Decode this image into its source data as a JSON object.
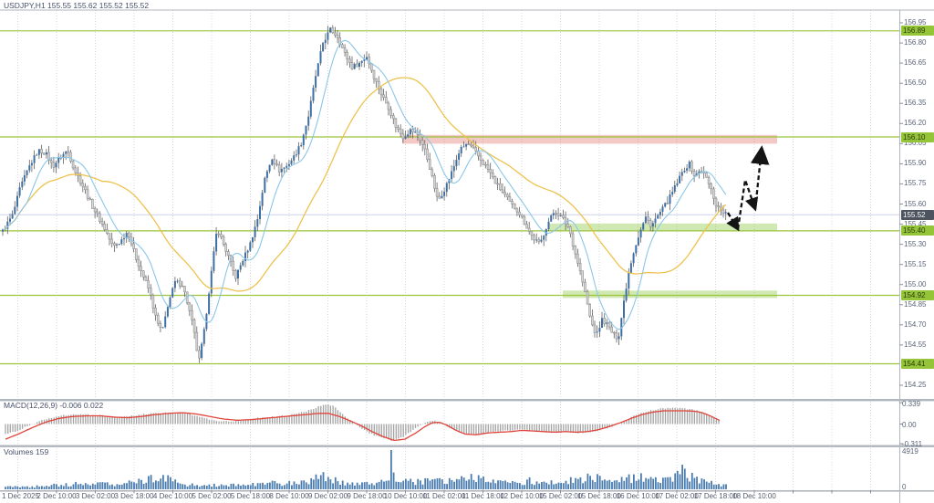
{
  "title_text": "USDJPY,H1 155.55 155.62 155.52 155.52",
  "colors": {
    "bull": "#3d6fa5",
    "bear_fill": "#d6d6d6",
    "bear_border": "#8f8f8f",
    "wick": "#606060",
    "ma_fast": "#8ac6e8",
    "ma_slow": "#edc24e",
    "level_line": "#9cc43c",
    "badge_bg": "#94c437",
    "badge_text": "#2c3a10",
    "zone_red": "rgba(221,112,99,0.38)",
    "zone_green": "rgba(137,199,66,0.40)",
    "current_line": "#ccd2ec",
    "current_badge_bg": "#4d545f",
    "macd_hist": "#a3a3a3",
    "macd_signal": "#e0443a",
    "volume": "#4a7cb0",
    "grid": "#d4d8dd",
    "frame": "#b0b6be",
    "arrow": "#141414"
  },
  "price_axis": {
    "ticks": [
      "156.95",
      "156.80",
      "156.65",
      "156.50",
      "156.35",
      "156.20",
      "156.05",
      "155.90",
      "155.75",
      "155.60",
      "155.45",
      "155.30",
      "155.15",
      "155.00",
      "154.85",
      "154.70",
      "154.55",
      "154.25"
    ]
  },
  "macd_axis": {
    "ticks": [
      "0.339",
      "0.00",
      "-0.311"
    ],
    "values": [
      0.339,
      0.0,
      -0.311
    ]
  },
  "volume_axis": {
    "ticks": [
      "4919",
      "0"
    ],
    "values": [
      4919,
      0
    ]
  },
  "time_axis": {
    "labels": [
      "1 Dec 2025",
      "2 Dec 10:00",
      "3 Dec 02:00",
      "3 Dec 18:00",
      "4 Dec 10:00",
      "5 Dec 02:00",
      "5 Dec 18:00",
      "8 Dec 10:00",
      "9 Dec 02:00",
      "9 Dec 18:00",
      "10 Dec 10:00",
      "11 Dec 02:00",
      "11 Dec 18:00",
      "12 Dec 10:00",
      "15 Dec 02:00",
      "15 Dec 18:00",
      "16 Dec 10:00",
      "17 Dec 02:00",
      "17 Dec 18:00",
      "18 Dec 10:00"
    ]
  },
  "chart_data": {
    "type": "candlestick",
    "symbol": "USDJPY",
    "timeframe": "H1",
    "current_bar": {
      "open": "155.55",
      "high": "155.62",
      "low": "155.52",
      "close": "155.52"
    },
    "ylim": [
      154.18,
      157.04
    ],
    "current_price": 155.52,
    "levels": [
      {
        "price": 156.89,
        "label": "156.89"
      },
      {
        "price": 156.1,
        "label": "156.10"
      },
      {
        "price": 155.4,
        "label": "155.40"
      },
      {
        "price": 154.92,
        "label": "154.92"
      },
      {
        "price": 154.41,
        "label": "154.41"
      }
    ],
    "zones": [
      {
        "type": "resistance",
        "price_from": 156.05,
        "price_to": 156.115,
        "x_from": 441,
        "x_to": 852,
        "color": "red"
      },
      {
        "type": "support",
        "price_from": 155.4,
        "price_to": 155.455,
        "x_from": 601,
        "x_to": 852,
        "color": "green"
      },
      {
        "type": "support",
        "price_from": 154.9,
        "price_to": 154.955,
        "x_from": 617,
        "x_to": 852,
        "color": "green"
      }
    ],
    "close_anchors": [
      [
        3,
        155.4
      ],
      [
        14,
        155.52
      ],
      [
        22,
        155.72
      ],
      [
        32,
        155.88
      ],
      [
        42,
        156.0
      ],
      [
        50,
        155.98
      ],
      [
        58,
        155.88
      ],
      [
        66,
        155.95
      ],
      [
        74,
        156.0
      ],
      [
        82,
        155.85
      ],
      [
        92,
        155.72
      ],
      [
        100,
        155.6
      ],
      [
        108,
        155.5
      ],
      [
        116,
        155.4
      ],
      [
        124,
        155.28
      ],
      [
        132,
        155.32
      ],
      [
        140,
        155.4
      ],
      [
        148,
        155.22
      ],
      [
        156,
        155.08
      ],
      [
        164,
        154.95
      ],
      [
        172,
        154.72
      ],
      [
        178,
        154.65
      ],
      [
        184,
        154.85
      ],
      [
        192,
        155.02
      ],
      [
        200,
        155.0
      ],
      [
        206,
        154.85
      ],
      [
        212,
        154.68
      ],
      [
        218,
        154.42
      ],
      [
        224,
        154.66
      ],
      [
        230,
        155.0
      ],
      [
        238,
        155.42
      ],
      [
        244,
        155.32
      ],
      [
        252,
        155.18
      ],
      [
        258,
        155.05
      ],
      [
        266,
        155.18
      ],
      [
        274,
        155.3
      ],
      [
        282,
        155.48
      ],
      [
        290,
        155.78
      ],
      [
        298,
        155.95
      ],
      [
        306,
        155.85
      ],
      [
        314,
        155.88
      ],
      [
        322,
        155.95
      ],
      [
        330,
        156.05
      ],
      [
        338,
        156.25
      ],
      [
        346,
        156.55
      ],
      [
        354,
        156.8
      ],
      [
        362,
        156.9
      ],
      [
        370,
        156.85
      ],
      [
        378,
        156.72
      ],
      [
        386,
        156.62
      ],
      [
        394,
        156.65
      ],
      [
        402,
        156.7
      ],
      [
        410,
        156.55
      ],
      [
        418,
        156.42
      ],
      [
        426,
        156.32
      ],
      [
        434,
        156.18
      ],
      [
        442,
        156.1
      ],
      [
        450,
        156.15
      ],
      [
        458,
        156.12
      ],
      [
        466,
        156.0
      ],
      [
        472,
        155.85
      ],
      [
        480,
        155.62
      ],
      [
        488,
        155.72
      ],
      [
        496,
        155.85
      ],
      [
        504,
        156.0
      ],
      [
        512,
        156.05
      ],
      [
        520,
        156.0
      ],
      [
        528,
        155.92
      ],
      [
        536,
        155.85
      ],
      [
        544,
        155.75
      ],
      [
        552,
        155.68
      ],
      [
        560,
        155.6
      ],
      [
        568,
        155.55
      ],
      [
        576,
        155.45
      ],
      [
        584,
        155.35
      ],
      [
        592,
        155.3
      ],
      [
        600,
        155.45
      ],
      [
        608,
        155.55
      ],
      [
        616,
        155.5
      ],
      [
        624,
        155.42
      ],
      [
        630,
        155.25
      ],
      [
        636,
        155.1
      ],
      [
        642,
        154.92
      ],
      [
        648,
        154.72
      ],
      [
        654,
        154.62
      ],
      [
        660,
        154.74
      ],
      [
        666,
        154.7
      ],
      [
        672,
        154.63
      ],
      [
        678,
        154.6
      ],
      [
        684,
        154.88
      ],
      [
        690,
        155.12
      ],
      [
        696,
        155.28
      ],
      [
        702,
        155.4
      ],
      [
        708,
        155.5
      ],
      [
        714,
        155.44
      ],
      [
        720,
        155.5
      ],
      [
        726,
        155.56
      ],
      [
        732,
        155.62
      ],
      [
        738,
        155.7
      ],
      [
        744,
        155.78
      ],
      [
        750,
        155.86
      ],
      [
        756,
        155.9
      ],
      [
        762,
        155.8
      ],
      [
        768,
        155.86
      ],
      [
        774,
        155.8
      ],
      [
        780,
        155.7
      ],
      [
        786,
        155.58
      ],
      [
        792,
        155.55
      ],
      [
        797,
        155.52
      ]
    ],
    "moving_averages": [
      {
        "name": "fast",
        "window": 11,
        "color_key": "ma_fast"
      },
      {
        "name": "slow",
        "window": 42,
        "color_key": "ma_slow"
      }
    ],
    "macd": {
      "label": "MACD(12,26,9)",
      "values": "-0.006 0.022",
      "range": [
        -0.311,
        0.339
      ],
      "signal_anchors": [
        [
          6,
          -0.24
        ],
        [
          20,
          -0.16
        ],
        [
          35,
          -0.06
        ],
        [
          50,
          0.03
        ],
        [
          65,
          0.09
        ],
        [
          80,
          0.12
        ],
        [
          95,
          0.13
        ],
        [
          110,
          0.13
        ],
        [
          125,
          0.11
        ],
        [
          140,
          0.1
        ],
        [
          155,
          0.12
        ],
        [
          170,
          0.15
        ],
        [
          185,
          0.17
        ],
        [
          200,
          0.18
        ],
        [
          215,
          0.16
        ],
        [
          230,
          0.12
        ],
        [
          245,
          0.08
        ],
        [
          260,
          0.06
        ],
        [
          275,
          0.07
        ],
        [
          290,
          0.09
        ],
        [
          305,
          0.11
        ],
        [
          320,
          0.13
        ],
        [
          335,
          0.15
        ],
        [
          350,
          0.17
        ],
        [
          360,
          0.17
        ],
        [
          372,
          0.12
        ],
        [
          384,
          0.05
        ],
        [
          395,
          -0.02
        ],
        [
          408,
          -0.12
        ],
        [
          420,
          -0.2
        ],
        [
          432,
          -0.26
        ],
        [
          444,
          -0.24
        ],
        [
          456,
          -0.14
        ],
        [
          466,
          -0.04
        ],
        [
          474,
          0.02
        ],
        [
          482,
          0.03
        ],
        [
          490,
          -0.02
        ],
        [
          500,
          -0.1
        ],
        [
          510,
          -0.16
        ],
        [
          522,
          -0.17
        ],
        [
          535,
          -0.14
        ],
        [
          548,
          -0.13
        ],
        [
          560,
          -0.12
        ],
        [
          572,
          -0.1
        ],
        [
          584,
          -0.11
        ],
        [
          596,
          -0.12
        ],
        [
          608,
          -0.13
        ],
        [
          620,
          -0.12
        ],
        [
          632,
          -0.13
        ],
        [
          644,
          -0.12
        ],
        [
          656,
          -0.09
        ],
        [
          668,
          -0.04
        ],
        [
          680,
          0.02
        ],
        [
          692,
          0.09
        ],
        [
          704,
          0.15
        ],
        [
          716,
          0.19
        ],
        [
          728,
          0.21
        ],
        [
          740,
          0.21
        ],
        [
          752,
          0.21
        ],
        [
          764,
          0.2
        ],
        [
          772,
          0.17
        ],
        [
          780,
          0.12
        ],
        [
          790,
          0.05
        ]
      ],
      "hist_anchors": [
        [
          6,
          -0.16
        ],
        [
          20,
          -0.1
        ],
        [
          35,
          0.0
        ],
        [
          50,
          0.08
        ],
        [
          65,
          0.13
        ],
        [
          80,
          0.15
        ],
        [
          95,
          0.15
        ],
        [
          110,
          0.14
        ],
        [
          125,
          0.1
        ],
        [
          140,
          0.12
        ],
        [
          155,
          0.15
        ],
        [
          170,
          0.17
        ],
        [
          185,
          0.18
        ],
        [
          200,
          0.18
        ],
        [
          215,
          0.13
        ],
        [
          230,
          0.07
        ],
        [
          245,
          0.04
        ],
        [
          260,
          0.05
        ],
        [
          275,
          0.08
        ],
        [
          290,
          0.11
        ],
        [
          305,
          0.12
        ],
        [
          320,
          0.15
        ],
        [
          335,
          0.2
        ],
        [
          348,
          0.27
        ],
        [
          358,
          0.31
        ],
        [
          366,
          0.28
        ],
        [
          375,
          0.16
        ],
        [
          385,
          0.04
        ],
        [
          395,
          -0.06
        ],
        [
          406,
          -0.15
        ],
        [
          418,
          -0.22
        ],
        [
          430,
          -0.26
        ],
        [
          440,
          -0.22
        ],
        [
          450,
          -0.12
        ],
        [
          460,
          -0.03
        ],
        [
          468,
          0.03
        ],
        [
          476,
          0.05
        ],
        [
          484,
          0.01
        ],
        [
          494,
          -0.07
        ],
        [
          504,
          -0.13
        ],
        [
          514,
          -0.17
        ],
        [
          526,
          -0.16
        ],
        [
          538,
          -0.12
        ],
        [
          550,
          -0.11
        ],
        [
          562,
          -0.1
        ],
        [
          574,
          -0.09
        ],
        [
          586,
          -0.11
        ],
        [
          598,
          -0.13
        ],
        [
          610,
          -0.14
        ],
        [
          622,
          -0.12
        ],
        [
          634,
          -0.14
        ],
        [
          646,
          -0.13
        ],
        [
          658,
          -0.1
        ],
        [
          670,
          -0.05
        ],
        [
          682,
          0.03
        ],
        [
          694,
          0.12
        ],
        [
          706,
          0.19
        ],
        [
          718,
          0.23
        ],
        [
          730,
          0.25
        ],
        [
          742,
          0.25
        ],
        [
          754,
          0.24
        ],
        [
          766,
          0.21
        ],
        [
          774,
          0.16
        ],
        [
          782,
          0.1
        ],
        [
          788,
          0.06
        ]
      ]
    },
    "volumes": {
      "label": "Volumes",
      "current": 159,
      "max": 4919,
      "anchors": [
        [
          6,
          420
        ],
        [
          20,
          380
        ],
        [
          40,
          350
        ],
        [
          60,
          520
        ],
        [
          80,
          650
        ],
        [
          100,
          720
        ],
        [
          120,
          600
        ],
        [
          140,
          750
        ],
        [
          160,
          1100
        ],
        [
          175,
          1500
        ],
        [
          185,
          1200
        ],
        [
          200,
          600
        ],
        [
          215,
          480
        ],
        [
          230,
          520
        ],
        [
          245,
          450
        ],
        [
          260,
          520
        ],
        [
          275,
          650
        ],
        [
          290,
          800
        ],
        [
          305,
          750
        ],
        [
          320,
          820
        ],
        [
          335,
          900
        ],
        [
          350,
          1800
        ],
        [
          358,
          1400
        ],
        [
          368,
          1200
        ],
        [
          380,
          800
        ],
        [
          395,
          850
        ],
        [
          410,
          780
        ],
        [
          424,
          900
        ],
        [
          436,
          900
        ],
        [
          450,
          1000
        ],
        [
          462,
          950
        ],
        [
          474,
          1250
        ],
        [
          486,
          1000
        ],
        [
          498,
          1200
        ],
        [
          510,
          1550
        ],
        [
          520,
          1400
        ],
        [
          532,
          1250
        ],
        [
          544,
          850
        ],
        [
          556,
          750
        ],
        [
          568,
          850
        ],
        [
          580,
          1050
        ],
        [
          592,
          850
        ],
        [
          604,
          800
        ],
        [
          616,
          950
        ],
        [
          628,
          1100
        ],
        [
          640,
          1350
        ],
        [
          652,
          1500
        ],
        [
          664,
          1150
        ],
        [
          676,
          950
        ],
        [
          688,
          1300
        ],
        [
          700,
          1400
        ],
        [
          712,
          1500
        ],
        [
          724,
          1050
        ],
        [
          736,
          1200
        ],
        [
          748,
          2200
        ],
        [
          758,
          1450
        ],
        [
          768,
          1150
        ],
        [
          778,
          850
        ],
        [
          788,
          650
        ],
        [
          797,
          450
        ]
      ],
      "spikes": [
        {
          "x": 428.5,
          "v": 4919
        },
        {
          "x": 431.5,
          "v": 2100
        }
      ]
    },
    "forecast_arrow": {
      "segments": [
        {
          "points": [
            [
              798,
              233
            ],
            [
              809,
              251
            ]
          ],
          "head": "small"
        },
        {
          "points": [
            [
              809,
              251
            ],
            [
              817,
              197
            ],
            [
              828,
              229
            ]
          ],
          "head": "small"
        },
        {
          "points": [
            [
              828,
              229
            ],
            [
              835,
              163
            ]
          ],
          "head": "big"
        }
      ]
    }
  }
}
